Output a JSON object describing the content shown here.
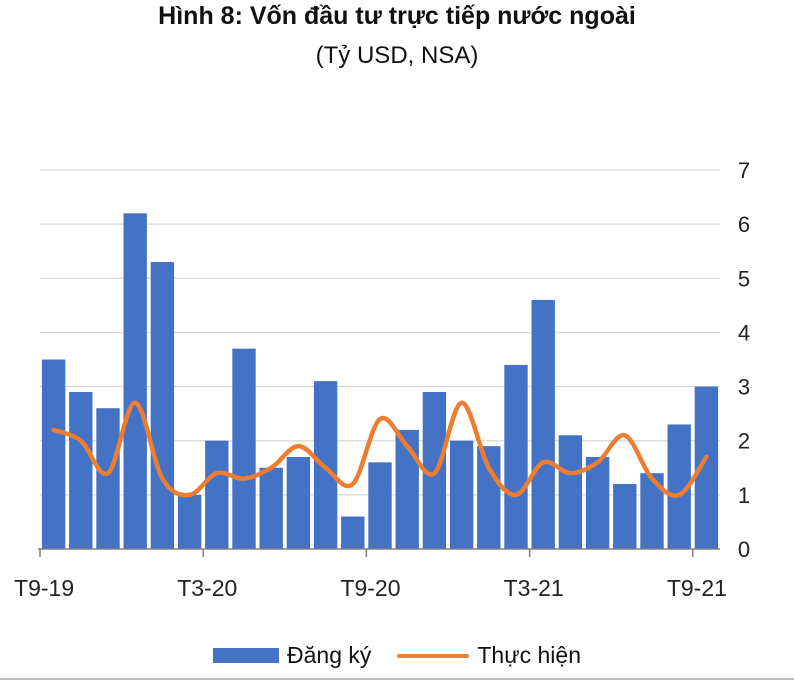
{
  "chart_data": {
    "type": "bar+line",
    "title": "Hình 8: Vốn đầu tư trực tiếp nước ngoài",
    "subtitle": "(Tỷ USD, NSA)",
    "x_tick_labels": [
      "T9-19",
      "T3-20",
      "T9-20",
      "T3-21",
      "T9-21"
    ],
    "y_tick_labels": [
      "0",
      "1",
      "2",
      "3",
      "4",
      "5",
      "6",
      "7"
    ],
    "ylim": [
      0,
      7
    ],
    "y_axis_side": "right",
    "grid": "horizontal",
    "legend_position": "bottom",
    "series": [
      {
        "name": "Đăng ký",
        "kind": "bar",
        "color": "#4472C4",
        "values": [
          3.5,
          2.9,
          2.6,
          6.2,
          5.3,
          1.0,
          2.0,
          3.7,
          1.5,
          1.7,
          3.1,
          0.6,
          1.6,
          2.2,
          2.9,
          2.0,
          1.9,
          3.4,
          4.6,
          2.1,
          1.7,
          1.2,
          1.4,
          2.3,
          3.0
        ]
      },
      {
        "name": "Thực hiện",
        "kind": "line",
        "color": "#ED7D31",
        "values": [
          2.2,
          2.0,
          1.4,
          2.7,
          1.3,
          1.0,
          1.4,
          1.3,
          1.5,
          1.9,
          1.5,
          1.2,
          2.4,
          1.9,
          1.4,
          2.7,
          1.5,
          1.0,
          1.6,
          1.4,
          1.6,
          2.1,
          1.3,
          1.0,
          1.7
        ]
      }
    ]
  }
}
